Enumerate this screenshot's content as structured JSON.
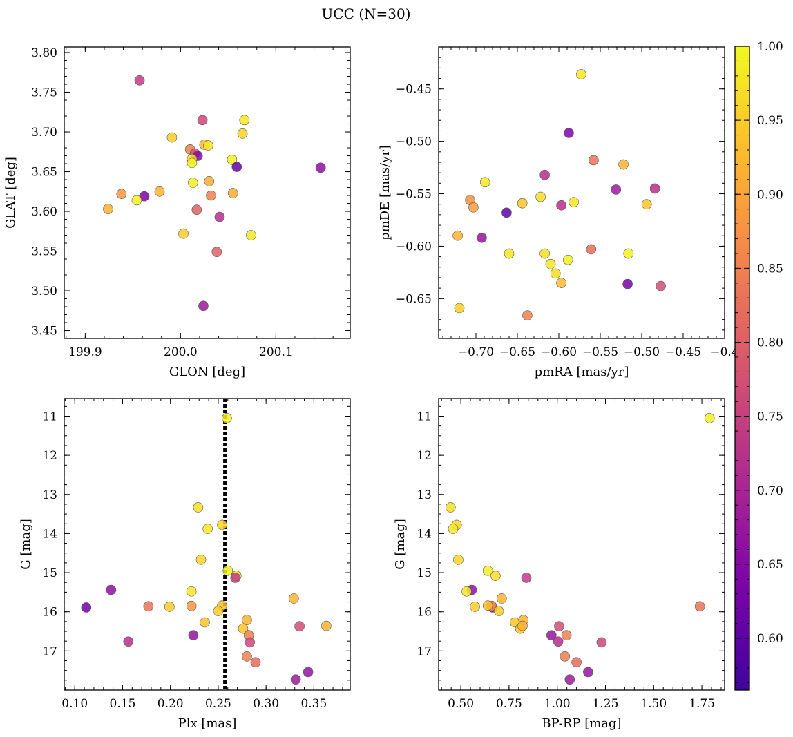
{
  "title": "UCC (N=30)",
  "colorbar": {
    "colormap": "plasma",
    "range": [
      0.565,
      1.0
    ],
    "ticks": [
      0.6,
      0.65,
      0.7,
      0.75,
      0.8,
      0.85,
      0.9,
      0.95,
      1.0
    ],
    "tick_labels": [
      "0.60",
      "0.65",
      "0.70",
      "0.75",
      "0.80",
      "0.85",
      "0.90",
      "0.95",
      "1.00"
    ]
  },
  "chart_data": [
    {
      "type": "scatter",
      "xlabel": "GLON [deg]",
      "ylabel": "GLAT [deg]",
      "xlim": [
        199.878,
        200.178
      ],
      "ylim": [
        3.44,
        3.807
      ],
      "xticks": [
        199.9,
        200.0,
        200.1
      ],
      "xtick_labels": [
        "199.9",
        "200.0",
        "200.1"
      ],
      "yticks": [
        3.45,
        3.5,
        3.55,
        3.6,
        3.65,
        3.7,
        3.75,
        3.8
      ],
      "ytick_labels": [
        "3.45",
        "3.50",
        "3.55",
        "3.60",
        "3.65",
        "3.70",
        "3.75",
        "3.80"
      ],
      "invert_y": false,
      "points": [
        {
          "x": 199.957,
          "y": 3.765,
          "c": 0.74
        },
        {
          "x": 200.023,
          "y": 3.715,
          "c": 0.76
        },
        {
          "x": 200.067,
          "y": 3.715,
          "c": 0.98
        },
        {
          "x": 200.065,
          "y": 3.698,
          "c": 0.96
        },
        {
          "x": 199.991,
          "y": 3.693,
          "c": 0.95
        },
        {
          "x": 200.025,
          "y": 3.684,
          "c": 0.93
        },
        {
          "x": 200.029,
          "y": 3.683,
          "c": 0.98
        },
        {
          "x": 200.01,
          "y": 3.678,
          "c": 0.85
        },
        {
          "x": 200.015,
          "y": 3.673,
          "c": 0.78
        },
        {
          "x": 200.018,
          "y": 3.67,
          "c": 0.65
        },
        {
          "x": 200.012,
          "y": 3.666,
          "c": 0.97
        },
        {
          "x": 200.012,
          "y": 3.661,
          "c": 0.99
        },
        {
          "x": 200.054,
          "y": 3.665,
          "c": 0.99
        },
        {
          "x": 200.059,
          "y": 3.656,
          "c": 0.6
        },
        {
          "x": 200.147,
          "y": 3.655,
          "c": 0.66
        },
        {
          "x": 200.013,
          "y": 3.636,
          "c": 0.99
        },
        {
          "x": 200.03,
          "y": 3.638,
          "c": 0.91
        },
        {
          "x": 199.978,
          "y": 3.625,
          "c": 0.92
        },
        {
          "x": 199.938,
          "y": 3.622,
          "c": 0.88
        },
        {
          "x": 199.962,
          "y": 3.619,
          "c": 0.64
        },
        {
          "x": 200.032,
          "y": 3.62,
          "c": 0.85
        },
        {
          "x": 200.055,
          "y": 3.623,
          "c": 0.91
        },
        {
          "x": 199.954,
          "y": 3.614,
          "c": 0.99
        },
        {
          "x": 199.924,
          "y": 3.603,
          "c": 0.92
        },
        {
          "x": 200.017,
          "y": 3.602,
          "c": 0.8
        },
        {
          "x": 200.041,
          "y": 3.593,
          "c": 0.72
        },
        {
          "x": 200.003,
          "y": 3.572,
          "c": 0.95
        },
        {
          "x": 200.074,
          "y": 3.57,
          "c": 0.98
        },
        {
          "x": 200.038,
          "y": 3.549,
          "c": 0.8
        },
        {
          "x": 200.024,
          "y": 3.481,
          "c": 0.68
        }
      ]
    },
    {
      "type": "scatter",
      "xlabel": "pmRA [mas/yr]",
      "ylabel": "pmDE [mas/yr]",
      "xlim": [
        -0.745,
        -0.4
      ],
      "ylim": [
        -0.688,
        -0.41
      ],
      "xticks": [
        -0.7,
        -0.65,
        -0.6,
        -0.55,
        -0.5,
        -0.45,
        -0.4
      ],
      "xtick_labels": [
        "−0.70",
        "−0.65",
        "−0.60",
        "−0.55",
        "−0.50",
        "−0.45",
        "−0.4"
      ],
      "yticks": [
        -0.65,
        -0.6,
        -0.55,
        -0.5,
        -0.45
      ],
      "ytick_labels": [
        "−0.65",
        "−0.60",
        "−0.55",
        "−0.50",
        "−0.45"
      ],
      "invert_y": false,
      "points": [
        {
          "x": -0.573,
          "y": -0.436,
          "c": 0.98
        },
        {
          "x": -0.588,
          "y": -0.492,
          "c": 0.64
        },
        {
          "x": -0.558,
          "y": -0.518,
          "c": 0.83
        },
        {
          "x": -0.522,
          "y": -0.522,
          "c": 0.92
        },
        {
          "x": -0.617,
          "y": -0.532,
          "c": 0.72
        },
        {
          "x": -0.689,
          "y": -0.539,
          "c": 0.98
        },
        {
          "x": -0.707,
          "y": -0.556,
          "c": 0.87
        },
        {
          "x": -0.703,
          "y": -0.563,
          "c": 0.89
        },
        {
          "x": -0.644,
          "y": -0.559,
          "c": 0.94
        },
        {
          "x": -0.622,
          "y": -0.553,
          "c": 0.97
        },
        {
          "x": -0.597,
          "y": -0.561,
          "c": 0.72
        },
        {
          "x": -0.582,
          "y": -0.558,
          "c": 0.98
        },
        {
          "x": -0.531,
          "y": -0.546,
          "c": 0.68
        },
        {
          "x": -0.494,
          "y": -0.56,
          "c": 0.94
        },
        {
          "x": -0.484,
          "y": -0.545,
          "c": 0.72
        },
        {
          "x": -0.663,
          "y": -0.568,
          "c": 0.6
        },
        {
          "x": -0.722,
          "y": -0.59,
          "c": 0.92
        },
        {
          "x": -0.693,
          "y": -0.592,
          "c": 0.67
        },
        {
          "x": -0.66,
          "y": -0.607,
          "c": 0.98
        },
        {
          "x": -0.617,
          "y": -0.607,
          "c": 0.97
        },
        {
          "x": -0.561,
          "y": -0.603,
          "c": 0.82
        },
        {
          "x": -0.516,
          "y": -0.607,
          "c": 0.99
        },
        {
          "x": -0.61,
          "y": -0.617,
          "c": 0.98
        },
        {
          "x": -0.589,
          "y": -0.613,
          "c": 0.99
        },
        {
          "x": -0.604,
          "y": -0.626,
          "c": 0.97
        },
        {
          "x": -0.597,
          "y": -0.635,
          "c": 0.93
        },
        {
          "x": -0.517,
          "y": -0.636,
          "c": 0.63
        },
        {
          "x": -0.477,
          "y": -0.638,
          "c": 0.77
        },
        {
          "x": -0.72,
          "y": -0.659,
          "c": 0.95
        },
        {
          "x": -0.638,
          "y": -0.666,
          "c": 0.85
        }
      ]
    },
    {
      "type": "scatter",
      "xlabel": "Plx [mas]",
      "ylabel": "G [mag]",
      "xlim": [
        0.089,
        0.388
      ],
      "ylim": [
        10.55,
        18.0
      ],
      "xticks": [
        0.1,
        0.15,
        0.2,
        0.25,
        0.3,
        0.35
      ],
      "xtick_labels": [
        "0.10",
        "0.15",
        "0.20",
        "0.25",
        "0.30",
        "0.35"
      ],
      "yticks": [
        11,
        12,
        13,
        14,
        15,
        16,
        17
      ],
      "ytick_labels": [
        "11",
        "12",
        "13",
        "14",
        "15",
        "16",
        "17"
      ],
      "invert_y": true,
      "vline": 0.257,
      "points": [
        {
          "x": 0.259,
          "y": 11.05,
          "c": 0.99
        },
        {
          "x": 0.229,
          "y": 13.33,
          "c": 0.97
        },
        {
          "x": 0.254,
          "y": 13.78,
          "c": 0.96
        },
        {
          "x": 0.239,
          "y": 13.88,
          "c": 0.98
        },
        {
          "x": 0.232,
          "y": 14.67,
          "c": 0.96
        },
        {
          "x": 0.26,
          "y": 14.95,
          "c": 0.99
        },
        {
          "x": 0.269,
          "y": 15.08,
          "c": 0.97
        },
        {
          "x": 0.268,
          "y": 15.13,
          "c": 0.74
        },
        {
          "x": 0.138,
          "y": 15.44,
          "c": 0.66
        },
        {
          "x": 0.222,
          "y": 15.48,
          "c": 0.98
        },
        {
          "x": 0.112,
          "y": 15.89,
          "c": 0.62
        },
        {
          "x": 0.177,
          "y": 15.86,
          "c": 0.83
        },
        {
          "x": 0.199,
          "y": 15.87,
          "c": 0.95
        },
        {
          "x": 0.222,
          "y": 15.85,
          "c": 0.88
        },
        {
          "x": 0.254,
          "y": 15.84,
          "c": 0.93
        },
        {
          "x": 0.25,
          "y": 15.98,
          "c": 0.95
        },
        {
          "x": 0.329,
          "y": 15.66,
          "c": 0.92
        },
        {
          "x": 0.236,
          "y": 16.27,
          "c": 0.94
        },
        {
          "x": 0.28,
          "y": 16.21,
          "c": 0.92
        },
        {
          "x": 0.276,
          "y": 16.43,
          "c": 0.94
        },
        {
          "x": 0.335,
          "y": 16.37,
          "c": 0.77
        },
        {
          "x": 0.363,
          "y": 16.36,
          "c": 0.92
        },
        {
          "x": 0.224,
          "y": 16.6,
          "c": 0.67
        },
        {
          "x": 0.282,
          "y": 16.6,
          "c": 0.85
        },
        {
          "x": 0.156,
          "y": 16.76,
          "c": 0.72
        },
        {
          "x": 0.283,
          "y": 16.78,
          "c": 0.76
        },
        {
          "x": 0.28,
          "y": 17.14,
          "c": 0.85
        },
        {
          "x": 0.289,
          "y": 17.29,
          "c": 0.82
        },
        {
          "x": 0.344,
          "y": 17.54,
          "c": 0.67
        },
        {
          "x": 0.331,
          "y": 17.73,
          "c": 0.68
        }
      ]
    },
    {
      "type": "scatter",
      "xlabel": "BP-RP [mag]",
      "ylabel": "G [mag]",
      "xlim": [
        0.385,
        1.868
      ],
      "ylim": [
        10.55,
        18.0
      ],
      "xticks": [
        0.5,
        0.75,
        1.0,
        1.25,
        1.5,
        1.75
      ],
      "xtick_labels": [
        "0.50",
        "0.75",
        "1.00",
        "1.25",
        "1.50",
        "1.75"
      ],
      "yticks": [
        11,
        12,
        13,
        14,
        15,
        16,
        17
      ],
      "ytick_labels": [
        "11",
        "12",
        "13",
        "14",
        "15",
        "16",
        "17"
      ],
      "invert_y": true,
      "points": [
        {
          "x": 1.79,
          "y": 11.05,
          "c": 0.99
        },
        {
          "x": 0.447,
          "y": 13.33,
          "c": 0.97
        },
        {
          "x": 0.479,
          "y": 13.78,
          "c": 0.96
        },
        {
          "x": 0.46,
          "y": 13.88,
          "c": 0.98
        },
        {
          "x": 0.487,
          "y": 14.67,
          "c": 0.96
        },
        {
          "x": 0.64,
          "y": 14.95,
          "c": 0.99
        },
        {
          "x": 0.68,
          "y": 15.08,
          "c": 0.97
        },
        {
          "x": 0.84,
          "y": 15.13,
          "c": 0.74
        },
        {
          "x": 0.557,
          "y": 15.44,
          "c": 0.66
        },
        {
          "x": 0.53,
          "y": 15.48,
          "c": 0.98
        },
        {
          "x": 0.665,
          "y": 15.89,
          "c": 0.62
        },
        {
          "x": 1.74,
          "y": 15.86,
          "c": 0.83
        },
        {
          "x": 0.573,
          "y": 15.87,
          "c": 0.95
        },
        {
          "x": 0.66,
          "y": 15.85,
          "c": 0.88
        },
        {
          "x": 0.64,
          "y": 15.84,
          "c": 0.93
        },
        {
          "x": 0.697,
          "y": 15.98,
          "c": 0.95
        },
        {
          "x": 0.712,
          "y": 15.66,
          "c": 0.92
        },
        {
          "x": 0.78,
          "y": 16.27,
          "c": 0.94
        },
        {
          "x": 0.825,
          "y": 16.21,
          "c": 0.92
        },
        {
          "x": 0.808,
          "y": 16.43,
          "c": 0.94
        },
        {
          "x": 1.01,
          "y": 16.37,
          "c": 0.77
        },
        {
          "x": 0.82,
          "y": 16.36,
          "c": 0.92
        },
        {
          "x": 0.97,
          "y": 16.6,
          "c": 0.67
        },
        {
          "x": 1.048,
          "y": 16.6,
          "c": 0.85
        },
        {
          "x": 1.005,
          "y": 16.76,
          "c": 0.72
        },
        {
          "x": 1.23,
          "y": 16.78,
          "c": 0.76
        },
        {
          "x": 1.04,
          "y": 17.14,
          "c": 0.85
        },
        {
          "x": 1.1,
          "y": 17.29,
          "c": 0.82
        },
        {
          "x": 1.16,
          "y": 17.54,
          "c": 0.67
        },
        {
          "x": 1.065,
          "y": 17.73,
          "c": 0.68
        }
      ]
    }
  ]
}
